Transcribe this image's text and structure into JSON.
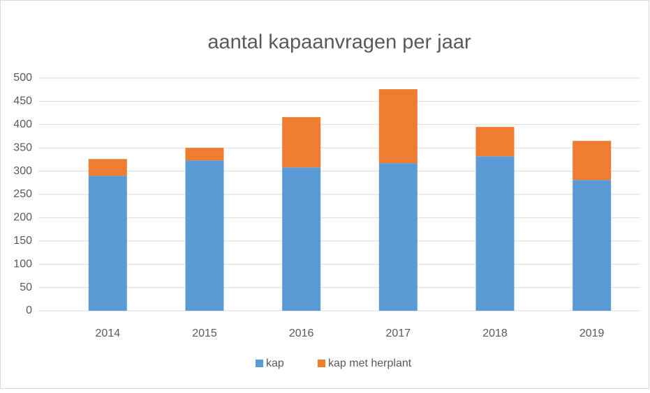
{
  "chart_data": {
    "type": "stacked_bar",
    "title": "aantal kapaanvragen per jaar",
    "categories": [
      "2014",
      "2015",
      "2016",
      "2017",
      "2018",
      "2019"
    ],
    "series": [
      {
        "name": "kap",
        "color": "#5b9bd5",
        "values": [
          290,
          323,
          308,
          317,
          332,
          281
        ]
      },
      {
        "name": "kap met herplant",
        "color": "#ed7d31",
        "values": [
          36,
          27,
          108,
          159,
          63,
          84
        ]
      }
    ],
    "ylim": [
      0,
      500
    ],
    "yticks": [
      0,
      50,
      100,
      150,
      200,
      250,
      300,
      350,
      400,
      450,
      500
    ],
    "grid": true,
    "legend": "bottom"
  }
}
